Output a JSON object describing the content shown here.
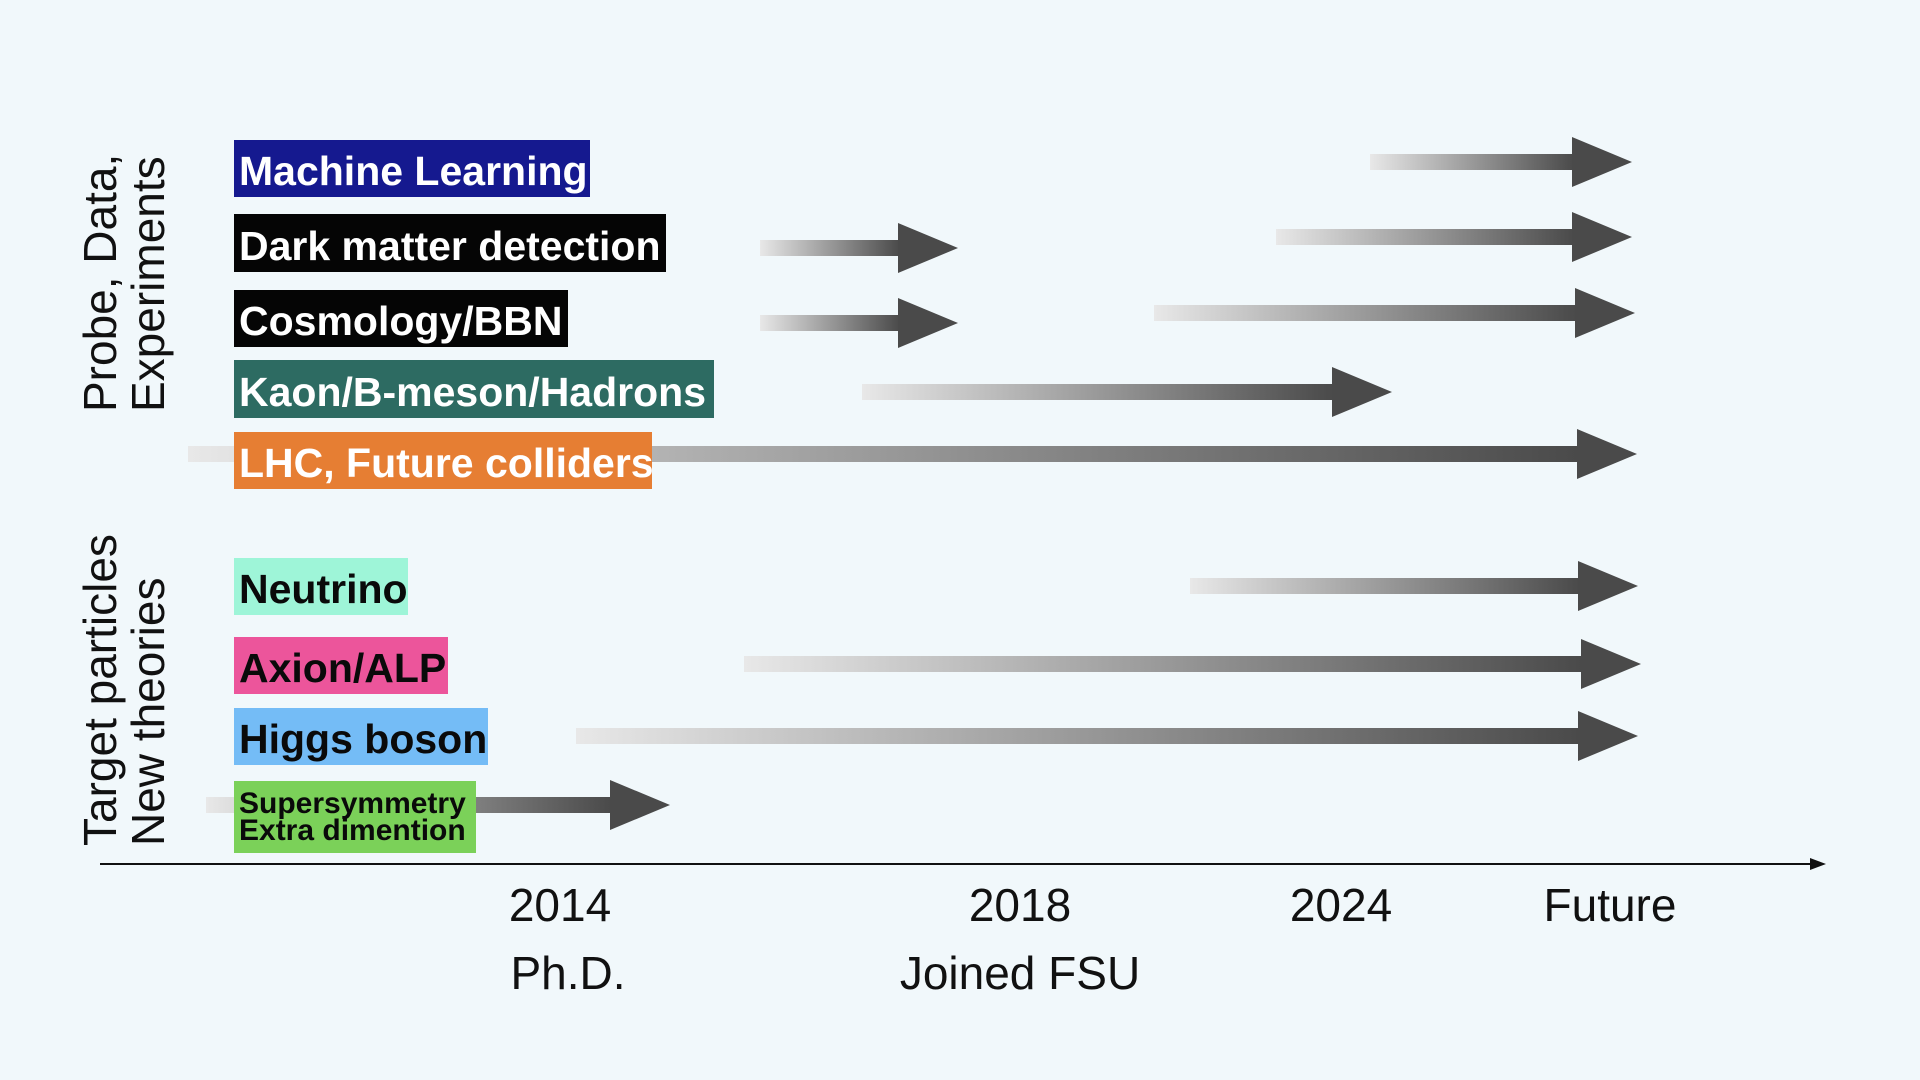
{
  "categories": {
    "probe": [
      "Probe, Data,",
      "Experiments"
    ],
    "target": [
      "Target particles",
      "New theories"
    ]
  },
  "labels": {
    "ml": {
      "text": "Machine Learning",
      "bg": "#15198f",
      "fg": "#ffffff"
    },
    "dm": {
      "text": "Dark matter detection",
      "bg": "#050505",
      "fg": "#ffffff"
    },
    "cosmo": {
      "text": "Cosmology/BBN",
      "bg": "#050505",
      "fg": "#ffffff"
    },
    "kaon": {
      "text": "Kaon/B-meson/Hadrons",
      "bg": "#2d6b62",
      "fg": "#ffffff"
    },
    "lhc": {
      "text": "LHC, Future colliders",
      "bg": "#e67e33",
      "fg": "#ffffff"
    },
    "neutrino": {
      "text": "Neutrino",
      "bg": "#9ef5d8",
      "fg": "#0a0a0a"
    },
    "axion": {
      "text": "Axion/ALP",
      "bg": "#ec559b",
      "fg": "#0a0a0a"
    },
    "higgs": {
      "text": "Higgs boson",
      "bg": "#74bcf6",
      "fg": "#0a0a0a"
    },
    "susy": {
      "line1": "Supersymmetry",
      "line2": "Extra dimention",
      "bg": "#7bd159",
      "fg": "#0a0a0a"
    }
  },
  "timeline": {
    "ticks": [
      "2014",
      "2018",
      "2024",
      "Future"
    ],
    "milestones": {
      "y2014": "Ph.D.",
      "y2018": "Joined FSU"
    }
  },
  "colors": {
    "arrow_dark": "#4a4a4a",
    "arrow_light": "#e8e8e8",
    "axis": "#111111"
  }
}
